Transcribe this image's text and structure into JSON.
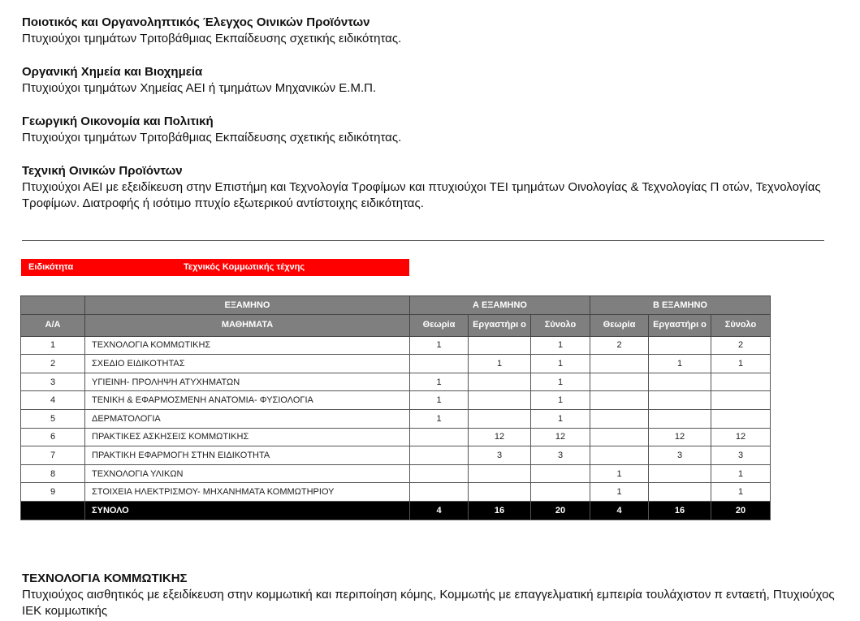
{
  "sections": [
    {
      "title": "Ποιοτικός και Οργανοληπτικός Έλεγχος Οινικών Προϊόντων",
      "text": "Πτυχιούχοι τμημάτων Τριτοβάθμιας Εκπαίδευσης σχετικής ειδικότητας."
    },
    {
      "title": "Οργανική Χημεία και Βιοχημεία",
      "text": "Πτυχιούχοι τμημάτων Χημείας ΑΕΙ ή τμημάτων Μηχανικών Ε.Μ.Π."
    },
    {
      "title": "Γεωργική Οικονομία και Πολιτική",
      "text": "Πτυχιούχοι τμημάτων Τριτοβάθμιας Εκπαίδευσης σχετικής ειδικότητας."
    },
    {
      "title": "Τεχνική Οινικών Προϊόντων",
      "text": "Πτυχιούχοι ΑΕΙ με εξειδίκευση στην Επιστήμη και Τεχνολογία Τροφίμων και πτυχιούχοι ΤΕΙ τμημάτων Οινολογίας & Τεχνολογίας Π οτών, Τεχνολογίας Τροφίμων. Διατροφής ή ισότιμο πτυχίο εξωτερικού αντίστοιχης ειδικότητας."
    }
  ],
  "specialty": {
    "label": "Ειδικότητα",
    "value": "Τεχνικός Κομμωτικής τέχνης"
  },
  "table": {
    "h_semester": "ΕΞΑΜΗΝΟ",
    "h_a": "Α ΕΞΑΜΗΝΟ",
    "h_b": "Β ΕΞΑΜΗΝΟ",
    "h_aa": "Α/Α",
    "h_subjects": "ΜΑΘΗΜΑΤΑ",
    "h_theory": "Θεωρία",
    "h_lab": "Εργαστήρι ο",
    "h_total": "Σύνολο",
    "rows": [
      [
        "1",
        "ΤΕΧΝΟΛΟΓΙΑ ΚΟΜΜΩΤΙΚΗΣ",
        "1",
        "",
        "1",
        "2",
        "",
        "2"
      ],
      [
        "2",
        "ΣΧΕΔΙΟ ΕΙΔΙΚΟΤΗΤΑΣ",
        "",
        "1",
        "1",
        "",
        "1",
        "1"
      ],
      [
        "3",
        "ΥΓΙΕΙΝΗ- ΠΡΟΛΗΨΗ ΑΤΥΧΗΜΑΤΩΝ",
        "1",
        "",
        "1",
        "",
        "",
        ""
      ],
      [
        "4",
        "ΤΕΝΙΚΗ & ΕΦΑΡΜΟΣΜΕΝΗ ΑΝΑΤΟΜΙΑ- ΦΥΣΙΟΛΟΓΙΑ",
        "1",
        "",
        "1",
        "",
        "",
        ""
      ],
      [
        "5",
        "ΔΕΡΜΑΤΟΛΟΓΙΑ",
        "1",
        "",
        "1",
        "",
        "",
        ""
      ],
      [
        "6",
        "ΠΡΑΚΤΙΚΕΣ ΑΣΚΗΣΕΙΣ ΚΟΜΜΩΤΙΚΗΣ",
        "",
        "12",
        "12",
        "",
        "12",
        "12"
      ],
      [
        "7",
        "ΠΡΑΚΤΙΚΗ ΕΦΑΡΜΟΓΗ ΣΤΗΝ ΕΙΔΙΚΟΤΗΤΑ",
        "",
        "3",
        "3",
        "",
        "3",
        "3"
      ],
      [
        "8",
        "ΤΕΧΝΟΛΟΓΙΑ ΥΛΙΚΩΝ",
        "",
        "",
        "",
        "1",
        "",
        "1"
      ],
      [
        "9",
        "ΣΤΟΙΧΕΙΑ ΗΛΕΚΤΡΙΣΜΟΥ- ΜΗΧΑΝΗΜΑΤΑ ΚΟΜΜΩΤΗΡΙΟΥ",
        "",
        "",
        "",
        "1",
        "",
        "1"
      ]
    ],
    "total": [
      "",
      "ΣΥΝΟΛΟ",
      "4",
      "16",
      "20",
      "4",
      "16",
      "20"
    ]
  },
  "bottom": {
    "title": "ΤΕΧΝΟΛΟΓΙΑ ΚΟΜΜΩΤΙΚΗΣ",
    "text": "Πτυχιούχος αισθητικός με εξειδίκευση στην κομμωτική και περιποίηση κόμης, Κομμωτής με επαγγελματική εμπειρία τουλάχιστον π ενταετή, Πτυχιούχος ΙΕΚ κομμωτικής"
  }
}
